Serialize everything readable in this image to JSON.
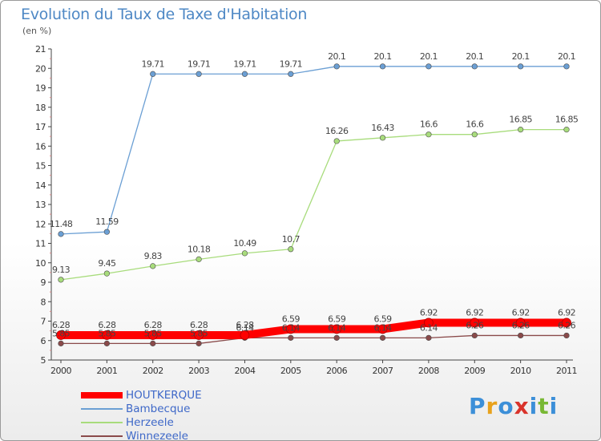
{
  "title": "Evolution du Taux de Taxe d'Habitation",
  "unit_label": "(en %)",
  "logo": {
    "text": "Proxiti",
    "letters": [
      "P",
      "r",
      "o",
      "x",
      "i",
      "t",
      "i"
    ],
    "colors": [
      "#3c8fd8",
      "#e8a21d",
      "#3c8fd8",
      "#d9332b",
      "#3c8fd8",
      "#78b834",
      "#3c8fd8"
    ]
  },
  "chart_data": {
    "type": "line",
    "title": "Evolution du Taux de Taxe d'Habitation",
    "ylabel": "(en %)",
    "xlabel": "",
    "x": [
      "2000",
      "2001",
      "2002",
      "2003",
      "2004",
      "2005",
      "2006",
      "2007",
      "2008",
      "2009",
      "2010",
      "2011"
    ],
    "ylim": [
      5,
      21
    ],
    "yticks": [
      "5",
      "6",
      "7",
      "8",
      "9",
      "10",
      "11",
      "12",
      "13",
      "14",
      "15",
      "16",
      "17",
      "18",
      "19",
      "20",
      "21"
    ],
    "grid": false,
    "legend": "bottom-left",
    "series": [
      {
        "name": "HOUTKERQUE",
        "color": "#ff0000",
        "emphasis": true,
        "values": [
          6.28,
          6.28,
          6.28,
          6.28,
          6.28,
          6.59,
          6.59,
          6.59,
          6.92,
          6.92,
          6.92,
          6.92
        ],
        "labels": [
          "6.28",
          "6.28",
          "6.28",
          "6.28",
          "6.28",
          "6.59",
          "6.59",
          "6.59",
          "6.92",
          "6.92",
          "6.92",
          "6.92"
        ]
      },
      {
        "name": "Bambecque",
        "color": "#6b9fd4",
        "values": [
          11.48,
          11.59,
          19.71,
          19.71,
          19.71,
          19.71,
          20.1,
          20.1,
          20.1,
          20.1,
          20.1,
          20.1
        ],
        "labels": [
          "11.48",
          "11.59",
          "19.71",
          "19.71",
          "19.71",
          "19.71",
          "20.1",
          "20.1",
          "20.1",
          "20.1",
          "20.1",
          "20.1"
        ]
      },
      {
        "name": "Herzeele",
        "color": "#a8dc7c",
        "values": [
          9.13,
          9.45,
          9.83,
          10.18,
          10.49,
          10.7,
          16.26,
          16.43,
          16.6,
          16.6,
          16.85,
          16.85
        ],
        "labels": [
          "9.13",
          "9.45",
          "9.83",
          "10.18",
          "10.49",
          "10.7",
          "16.26",
          "16.43",
          "16.6",
          "16.6",
          "16.85",
          "16.85"
        ]
      },
      {
        "name": "Winnezeele",
        "color": "#8a4a4a",
        "values": [
          5.85,
          5.85,
          5.85,
          5.85,
          6.14,
          6.14,
          6.14,
          6.14,
          6.14,
          6.26,
          6.26,
          6.26
        ],
        "labels": [
          "5.85",
          "5.85",
          "5.85",
          "5.85",
          "6.14",
          "6.14",
          "6.14",
          "6.14",
          "6.14",
          "6.26",
          "6.26",
          "6.26"
        ]
      }
    ]
  }
}
